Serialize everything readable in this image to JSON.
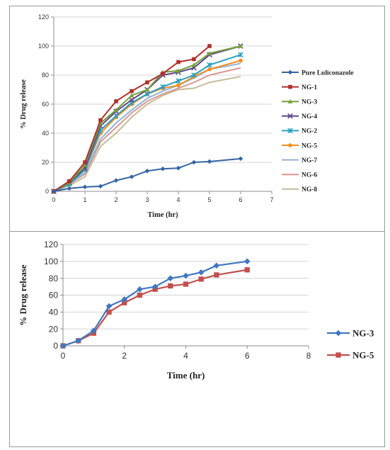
{
  "chart_data": [
    {
      "type": "line",
      "xlabel": "Time (hr)",
      "ylabel": "% Drug release",
      "xlim": [
        0,
        7
      ],
      "ylim": [
        0,
        120
      ],
      "xticks": [
        0,
        1,
        2,
        3,
        4,
        5,
        6,
        7
      ],
      "yticks": [
        0,
        20,
        40,
        60,
        80,
        100,
        120
      ],
      "grid": "horizontal",
      "legend": "right",
      "series": [
        {
          "name": "Pure Luliconazole",
          "color": "#3465a4",
          "marker": "diamond",
          "x": [
            0,
            0.5,
            1,
            1.5,
            2,
            2.5,
            3,
            3.5,
            4,
            4.5,
            5,
            6
          ],
          "y": [
            0,
            2,
            3,
            3.5,
            7.5,
            10,
            14,
            15.5,
            16,
            20,
            20.5,
            22.5
          ]
        },
        {
          "name": "NG-1",
          "color": "#b0302c",
          "marker": "square",
          "x": [
            0,
            0.5,
            1,
            1.5,
            2,
            2.5,
            3,
            3.5,
            4,
            4.5,
            5
          ],
          "y": [
            0,
            7,
            20,
            49,
            62,
            69,
            75,
            81,
            89,
            91,
            100
          ]
        },
        {
          "name": "NG-3",
          "color": "#76a13a",
          "marker": "triangle",
          "x": [
            0,
            0.5,
            1,
            1.5,
            2,
            2.5,
            3,
            3.5,
            4,
            4.5,
            5,
            6
          ],
          "y": [
            0,
            6,
            18,
            47,
            56,
            66,
            70,
            82,
            83,
            87,
            95,
            100
          ]
        },
        {
          "name": "NG-4",
          "color": "#60478a",
          "marker": "x",
          "x": [
            0,
            0.5,
            1,
            1.5,
            2,
            2.5,
            3,
            3.5,
            4,
            4.5,
            5,
            6
          ],
          "y": [
            0,
            6,
            16,
            45,
            55,
            63,
            70,
            80,
            82,
            85,
            94,
            100
          ]
        },
        {
          "name": "NG-2",
          "color": "#2b9fbf",
          "marker": "star",
          "x": [
            0,
            0.5,
            1,
            1.5,
            2,
            2.5,
            3,
            3.5,
            4,
            4.5,
            5,
            6
          ],
          "y": [
            0,
            5,
            15,
            42,
            52,
            61,
            67,
            72,
            76,
            80,
            87,
            94
          ]
        },
        {
          "name": "NG-5",
          "color": "#f28e1c",
          "marker": "circle",
          "x": [
            0,
            0.5,
            1,
            1.5,
            2,
            2.5,
            3,
            3.5,
            4,
            4.5,
            5,
            6
          ],
          "y": [
            0,
            6,
            15,
            40,
            51,
            60,
            67,
            71,
            73,
            79,
            84,
            90
          ]
        },
        {
          "name": "NG-7",
          "color": "#8fb4d8",
          "marker": "none",
          "x": [
            0,
            0.5,
            1,
            1.5,
            2,
            2.5,
            3,
            3.5,
            4,
            4.5,
            5,
            6
          ],
          "y": [
            0,
            5,
            13,
            36,
            47,
            56,
            64,
            69,
            73,
            78,
            84,
            88
          ]
        },
        {
          "name": "NG-6",
          "color": "#d99694",
          "marker": "none",
          "x": [
            0,
            0.5,
            1,
            1.5,
            2,
            2.5,
            3,
            3.5,
            4,
            4.5,
            5,
            6
          ],
          "y": [
            0,
            5,
            12,
            34,
            44,
            54,
            62,
            67,
            71,
            75,
            80,
            85
          ]
        },
        {
          "name": "NG-8",
          "color": "#c4bd97",
          "marker": "none",
          "x": [
            0,
            0.5,
            1,
            1.5,
            2,
            2.5,
            3,
            3.5,
            4,
            4.5,
            5,
            6
          ],
          "y": [
            0,
            4,
            10,
            31,
            40,
            51,
            60,
            66,
            70,
            71,
            75,
            79
          ]
        }
      ]
    },
    {
      "type": "line",
      "xlabel": "Time (hr)",
      "ylabel": "% Drug release",
      "xlim": [
        0,
        8
      ],
      "ylim": [
        0,
        120
      ],
      "xticks": [
        0,
        2,
        4,
        6,
        8
      ],
      "yticks": [
        0,
        20,
        40,
        60,
        80,
        100,
        120
      ],
      "grid": "horizontal",
      "legend": "right",
      "series": [
        {
          "name": "NG-3",
          "color": "#3f78c1",
          "marker": "diamond",
          "x": [
            0,
            0.5,
            1,
            1.5,
            2,
            2.5,
            3,
            3.5,
            4,
            4.5,
            5,
            6
          ],
          "y": [
            0,
            6,
            18,
            47,
            55,
            67,
            70,
            80,
            83,
            87,
            95,
            100
          ]
        },
        {
          "name": "NG-5",
          "color": "#c0504d",
          "marker": "square",
          "x": [
            0,
            0.5,
            1,
            1.5,
            2,
            2.5,
            3,
            3.5,
            4,
            4.5,
            5,
            6
          ],
          "y": [
            0,
            6,
            15,
            40,
            51,
            60,
            67,
            71,
            73,
            79,
            84,
            90
          ]
        }
      ]
    }
  ]
}
